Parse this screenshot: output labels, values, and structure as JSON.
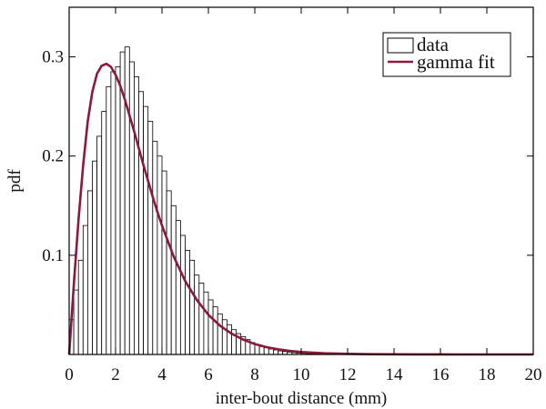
{
  "chart_data": {
    "type": "bar",
    "title": "",
    "xlabel": "inter-bout distance (mm)",
    "ylabel": "pdf",
    "xlim": [
      0,
      20
    ],
    "ylim": [
      0,
      0.35
    ],
    "x_ticks": [
      "0",
      "2",
      "4",
      "6",
      "8",
      "10",
      "12",
      "14",
      "16",
      "18",
      "20"
    ],
    "y_ticks": [
      {
        "value": 0.1,
        "label": "0.1"
      },
      {
        "value": 0.2,
        "label": "0.2"
      },
      {
        "value": 0.3,
        "label": "0.3"
      }
    ],
    "grid": false,
    "legend_position": "top-right",
    "bin_width": 0.2,
    "series": [
      {
        "name": "data",
        "kind": "histogram",
        "color": "#ffffff",
        "edge_color": "#000000",
        "bin_starts": [
          0.0,
          0.2,
          0.4,
          0.6,
          0.8,
          1.0,
          1.2,
          1.4,
          1.6,
          1.8,
          2.0,
          2.2,
          2.4,
          2.6,
          2.8,
          3.0,
          3.2,
          3.4,
          3.6,
          3.8,
          4.0,
          4.2,
          4.4,
          4.6,
          4.8,
          5.0,
          5.2,
          5.4,
          5.6,
          5.8,
          6.0,
          6.2,
          6.4,
          6.6,
          6.8,
          7.0,
          7.2,
          7.4,
          7.6,
          7.8,
          8.0,
          8.2,
          8.4,
          8.6,
          8.8,
          9.0,
          9.2,
          9.4,
          9.6,
          9.8,
          10.0,
          10.2,
          10.4,
          10.6,
          10.8,
          11.0,
          11.2,
          11.4,
          11.6,
          11.8,
          12.0,
          12.2,
          12.4,
          12.6,
          12.8,
          13.0,
          13.2,
          13.4,
          13.6,
          13.8,
          14.0,
          14.2,
          14.4,
          14.6,
          14.8,
          15.0,
          15.2,
          15.4,
          15.6,
          15.8,
          16.0,
          16.2,
          16.4,
          16.6,
          16.8,
          17.0,
          17.2,
          17.4,
          17.6,
          17.8,
          18.0,
          18.2,
          18.4,
          18.6,
          18.8,
          19.0,
          19.2,
          19.4,
          19.6,
          19.8
        ],
        "values": [
          0.035,
          0.065,
          0.095,
          0.13,
          0.165,
          0.195,
          0.22,
          0.245,
          0.27,
          0.285,
          0.29,
          0.305,
          0.31,
          0.295,
          0.28,
          0.265,
          0.25,
          0.235,
          0.215,
          0.2,
          0.185,
          0.165,
          0.15,
          0.135,
          0.12,
          0.105,
          0.095,
          0.08,
          0.072,
          0.063,
          0.055,
          0.048,
          0.041,
          0.035,
          0.03,
          0.025,
          0.021,
          0.018,
          0.015,
          0.012,
          0.01,
          0.008,
          0.0068,
          0.0055,
          0.0045,
          0.0036,
          0.0029,
          0.0023,
          0.0018,
          0.0014,
          0.0011,
          0.0009,
          0.0007,
          0.0006,
          0.0005,
          0.0004,
          0.0003,
          0.0003,
          0.0002,
          0.0002,
          0.0002,
          0.0001,
          0.0001,
          0.0001,
          0.0001,
          0.0001,
          0.0001,
          0,
          0,
          0,
          0,
          0,
          0,
          0,
          0,
          0,
          0,
          0,
          0,
          0,
          0,
          0,
          0,
          0,
          0,
          0,
          0,
          0,
          0,
          0,
          0,
          0,
          0,
          0,
          0,
          0,
          0,
          0,
          0,
          0
        ]
      },
      {
        "name": "gamma fit",
        "kind": "line",
        "color": "#8b1a3a",
        "x": [
          0,
          0.2,
          0.4,
          0.6,
          0.8,
          1.0,
          1.2,
          1.4,
          1.6,
          1.8,
          2.0,
          2.2,
          2.4,
          2.6,
          2.8,
          3.0,
          3.2,
          3.4,
          3.6,
          3.8,
          4.0,
          4.5,
          5.0,
          5.5,
          6.0,
          6.5,
          7.0,
          7.5,
          8.0,
          8.5,
          9.0,
          9.5,
          10.0,
          11.0,
          12.0,
          13.0,
          14.0,
          15.0,
          16.0,
          17.0,
          18.0,
          19.0,
          20.0
        ],
        "y": [
          0,
          0.07,
          0.135,
          0.19,
          0.235,
          0.265,
          0.283,
          0.291,
          0.293,
          0.29,
          0.282,
          0.271,
          0.257,
          0.241,
          0.225,
          0.208,
          0.191,
          0.175,
          0.159,
          0.144,
          0.13,
          0.099,
          0.074,
          0.055,
          0.04,
          0.029,
          0.021,
          0.015,
          0.0105,
          0.0074,
          0.0052,
          0.0036,
          0.0025,
          0.0012,
          0.0006,
          0.0003,
          0.00014,
          7e-05,
          3e-05,
          1e-05,
          0,
          0,
          0
        ]
      }
    ]
  }
}
